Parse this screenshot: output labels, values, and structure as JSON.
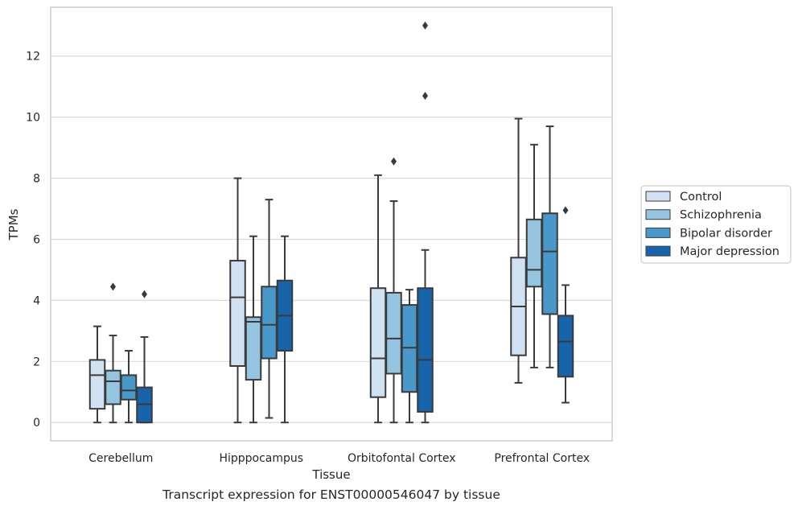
{
  "caption": "Transcript expression for ENST00000546047 by tissue",
  "chart_data": {
    "type": "box",
    "title": "",
    "xlabel": "Tissue",
    "ylabel": "TPMs",
    "ylim": [
      -0.6,
      13.6
    ],
    "yticks": [
      0,
      2,
      4,
      6,
      8,
      10,
      12
    ],
    "grid": "horizontal",
    "legend_position": "right",
    "categories": [
      "Cerebellum",
      "Hipppocampus",
      "Orbitofontal Cortex",
      "Prefrontal Cortex"
    ],
    "series": [
      {
        "name": "Control",
        "color": "#d0e1f2",
        "boxes": [
          {
            "whisker_low": 0,
            "q1": 0.45,
            "median": 1.55,
            "q3": 2.05,
            "whisker_high": 3.15,
            "outliers": []
          },
          {
            "whisker_low": 0,
            "q1": 1.85,
            "median": 4.1,
            "q3": 5.3,
            "whisker_high": 8.0,
            "outliers": []
          },
          {
            "whisker_low": 0,
            "q1": 0.83,
            "median": 2.1,
            "q3": 4.4,
            "whisker_high": 8.1,
            "outliers": []
          },
          {
            "whisker_low": 1.3,
            "q1": 2.2,
            "median": 3.8,
            "q3": 5.4,
            "whisker_high": 9.95,
            "outliers": []
          }
        ]
      },
      {
        "name": "Schizophrenia",
        "color": "#94c4df",
        "boxes": [
          {
            "whisker_low": 0,
            "q1": 0.6,
            "median": 1.35,
            "q3": 1.7,
            "whisker_high": 2.85,
            "outliers": [
              4.45
            ]
          },
          {
            "whisker_low": 0,
            "q1": 1.4,
            "median": 3.3,
            "q3": 3.45,
            "whisker_high": 6.1,
            "outliers": []
          },
          {
            "whisker_low": 0,
            "q1": 1.6,
            "median": 2.75,
            "q3": 4.25,
            "whisker_high": 7.25,
            "outliers": [
              8.55
            ]
          },
          {
            "whisker_low": 1.8,
            "q1": 4.45,
            "median": 5.0,
            "q3": 6.65,
            "whisker_high": 9.1,
            "outliers": []
          }
        ]
      },
      {
        "name": "Bipolar disorder",
        "color": "#4a98c9",
        "boxes": [
          {
            "whisker_low": 0,
            "q1": 0.75,
            "median": 1.05,
            "q3": 1.55,
            "whisker_high": 2.35,
            "outliers": []
          },
          {
            "whisker_low": 0.15,
            "q1": 2.1,
            "median": 3.2,
            "q3": 4.45,
            "whisker_high": 7.3,
            "outliers": []
          },
          {
            "whisker_low": 0,
            "q1": 1.0,
            "median": 2.45,
            "q3": 3.85,
            "whisker_high": 4.35,
            "outliers": []
          },
          {
            "whisker_low": 1.8,
            "q1": 3.55,
            "median": 5.6,
            "q3": 6.85,
            "whisker_high": 9.7,
            "outliers": []
          }
        ]
      },
      {
        "name": "Major depression",
        "color": "#1764ab",
        "boxes": [
          {
            "whisker_low": 0,
            "q1": 0,
            "median": 0.6,
            "q3": 1.15,
            "whisker_high": 2.8,
            "outliers": [
              4.2
            ]
          },
          {
            "whisker_low": 0,
            "q1": 2.35,
            "median": 3.5,
            "q3": 4.65,
            "whisker_high": 6.1,
            "outliers": []
          },
          {
            "whisker_low": 0,
            "q1": 0.35,
            "median": 2.05,
            "q3": 4.4,
            "whisker_high": 5.65,
            "outliers": [
              10.7,
              13.0
            ]
          },
          {
            "whisker_low": 0.65,
            "q1": 1.5,
            "median": 2.65,
            "q3": 3.5,
            "whisker_high": 4.5,
            "outliers": [
              6.95
            ]
          }
        ]
      }
    ]
  }
}
